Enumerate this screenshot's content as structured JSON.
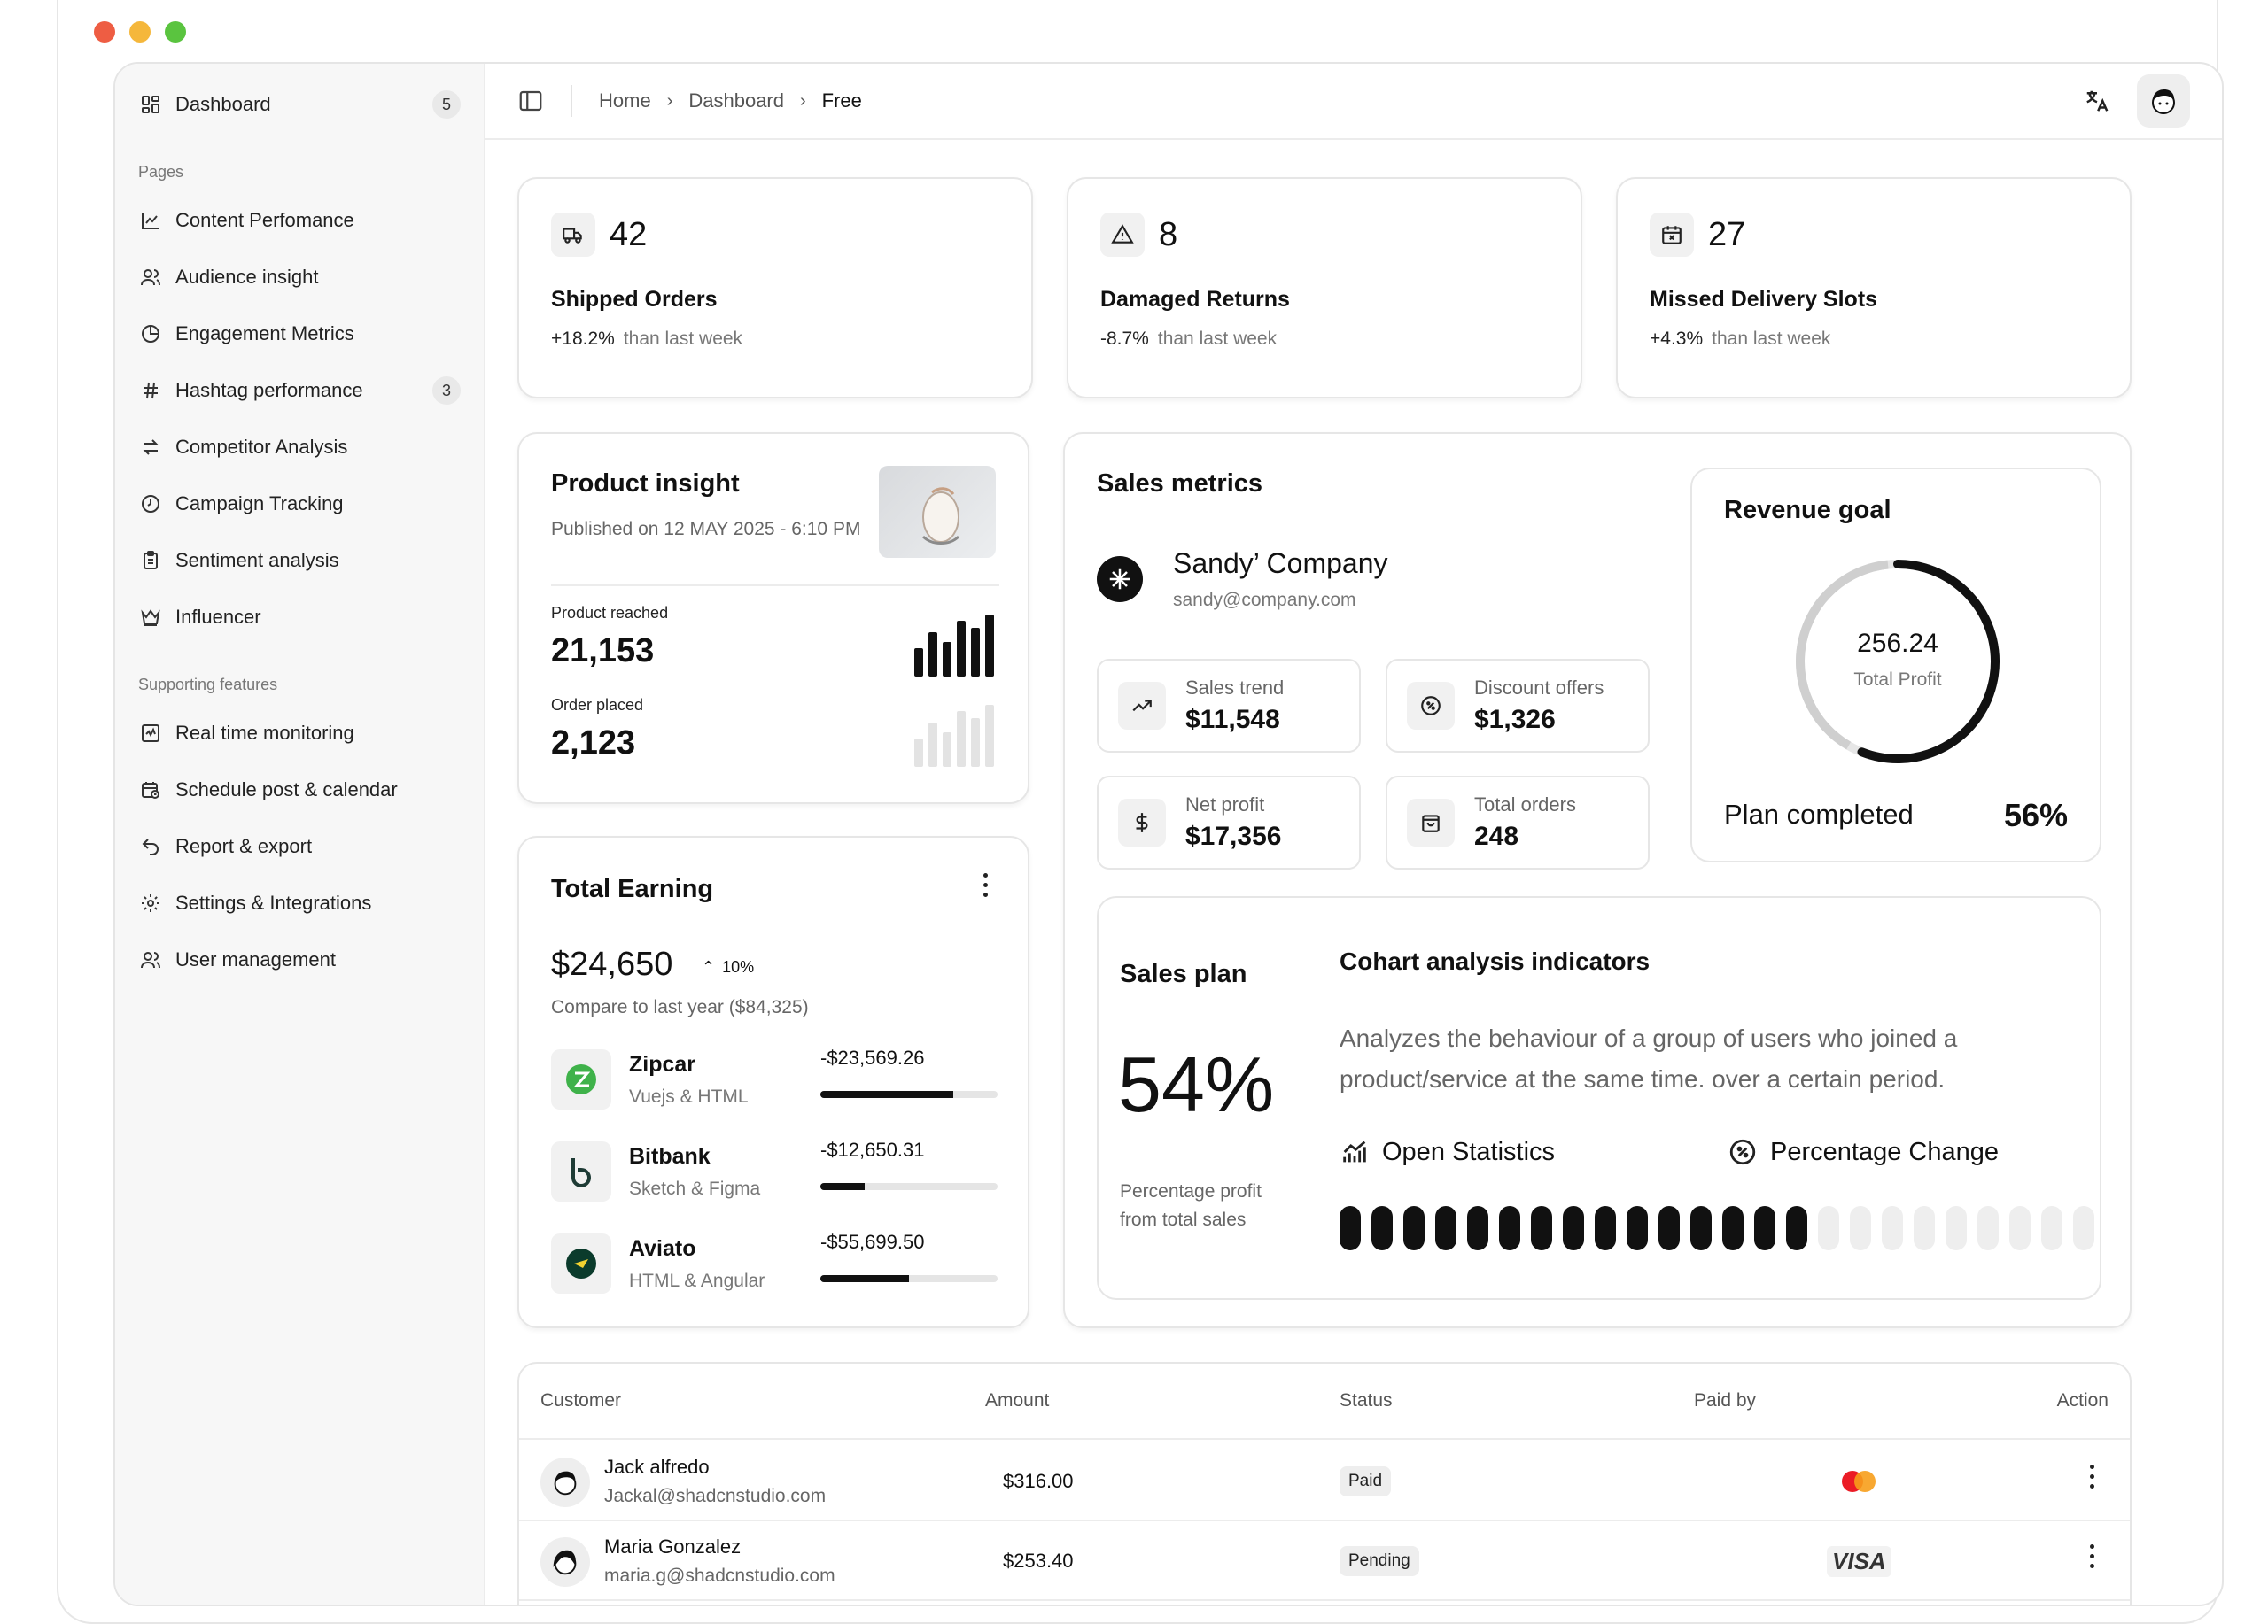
{
  "window": {
    "traffic_colors": [
      "#ee5d43",
      "#f5b73b",
      "#5ac43f"
    ]
  },
  "sidebar": {
    "top_item": {
      "label": "Dashboard",
      "badge": "5",
      "icon": "grid-icon"
    },
    "pages_heading": "Pages",
    "pages": [
      {
        "label": "Content Perfomance",
        "icon": "line-chart-icon",
        "badge": ""
      },
      {
        "label": "Audience insight",
        "icon": "users-icon",
        "badge": ""
      },
      {
        "label": "Engagement Metrics",
        "icon": "pie-icon",
        "badge": ""
      },
      {
        "label": "Hashtag performance",
        "icon": "hash-icon",
        "badge": "3"
      },
      {
        "label": "Competitor Analysis",
        "icon": "swap-icon",
        "badge": ""
      },
      {
        "label": "Campaign Tracking",
        "icon": "clock-icon",
        "badge": ""
      },
      {
        "label": "Sentiment analysis",
        "icon": "clipboard-icon",
        "badge": ""
      },
      {
        "label": "Influencer",
        "icon": "crown-icon",
        "badge": ""
      }
    ],
    "supporting_heading": "Supporting features",
    "supporting": [
      {
        "label": "Real time monitoring",
        "icon": "activity-icon"
      },
      {
        "label": "Schedule post & calendar",
        "icon": "calendar-clock-icon"
      },
      {
        "label": "Report & export",
        "icon": "undo-icon"
      },
      {
        "label": "Settings & Integrations",
        "icon": "gear-icon"
      },
      {
        "label": "User management",
        "icon": "users-icon"
      }
    ]
  },
  "topbar": {
    "breadcrumb": [
      "Home",
      "Dashboard",
      "Free"
    ]
  },
  "stats": [
    {
      "value": "42",
      "title": "Shipped Orders",
      "change": "+18.2%",
      "suffix": "than last week",
      "icon": "truck-icon"
    },
    {
      "value": "8",
      "title": "Damaged Returns",
      "change": "-8.7%",
      "suffix": "than last week",
      "icon": "warning-icon"
    },
    {
      "value": "27",
      "title": "Missed Delivery Slots",
      "change": "+4.3%",
      "suffix": "than last week",
      "icon": "calendar-x-icon"
    }
  ],
  "product_insight": {
    "title": "Product insight",
    "published": "Published on 12 MAY 2025 - 6:10 PM",
    "reached_label": "Product reached",
    "reached_value": "21,153",
    "placed_label": "Order placed",
    "placed_value": "2,123",
    "reached_bars": [
      0.45,
      0.72,
      0.55,
      0.9,
      0.78,
      1.0
    ],
    "placed_bars": [
      0.45,
      0.72,
      0.55,
      0.9,
      0.78,
      1.0
    ]
  },
  "total_earning": {
    "title": "Total Earning",
    "amount": "$24,650",
    "growth": "10%",
    "compare": "Compare to last year ($84,325)",
    "items": [
      {
        "name": "Zipcar",
        "sub": "Vuejs & HTML",
        "amount": "-$23,569.26",
        "progress": 0.75,
        "icon": "zipcar-logo"
      },
      {
        "name": "Bitbank",
        "sub": "Sketch & Figma",
        "amount": "-$12,650.31",
        "progress": 0.25,
        "icon": "bitbank-logo"
      },
      {
        "name": "Aviato",
        "sub": "HTML & Angular",
        "amount": "-$55,699.50",
        "progress": 0.5,
        "icon": "aviato-logo"
      }
    ]
  },
  "sales_metrics": {
    "title": "Sales metrics",
    "company": "Sandy’ Company",
    "email": "sandy@company.com",
    "minis": [
      {
        "label": "Sales trend",
        "value": "$11,548",
        "icon": "trend-up-icon"
      },
      {
        "label": "Discount offers",
        "value": "$1,326",
        "icon": "discount-icon"
      },
      {
        "label": "Net profit",
        "value": "$17,356",
        "icon": "dollar-icon"
      },
      {
        "label": "Total orders",
        "value": "248",
        "icon": "bag-icon"
      }
    ]
  },
  "revenue_goal": {
    "title": "Revenue goal",
    "value": "256.24",
    "value_label": "Total Profit",
    "plan_label": "Plan completed",
    "plan_value": "56%",
    "progress": 0.56
  },
  "sales_plan": {
    "title": "Sales plan",
    "percent": "54%",
    "sub": "Percentage profit from total sales",
    "cohort_title": "Cohart analysis indicators",
    "cohort_desc": "Analyzes the behaviour of a group of users who joined a product/service at the same time. over a certain period.",
    "open_stats": "Open Statistics",
    "pct_change": "Percentage Change",
    "segments_total": 24,
    "segments_filled": 15
  },
  "table": {
    "headers": [
      "Customer",
      "Amount",
      "Status",
      "Paid by",
      "Action"
    ],
    "rows": [
      {
        "name": "Jack alfredo",
        "email": "Jackal@shadcnstudio.com",
        "amount": "$316.00",
        "status": "Paid",
        "paid_by": "mastercard"
      },
      {
        "name": "Maria Gonzalez",
        "email": "maria.g@shadcnstudio.com",
        "amount": "$253.40",
        "status": "Pending",
        "paid_by": "VISA"
      }
    ]
  }
}
